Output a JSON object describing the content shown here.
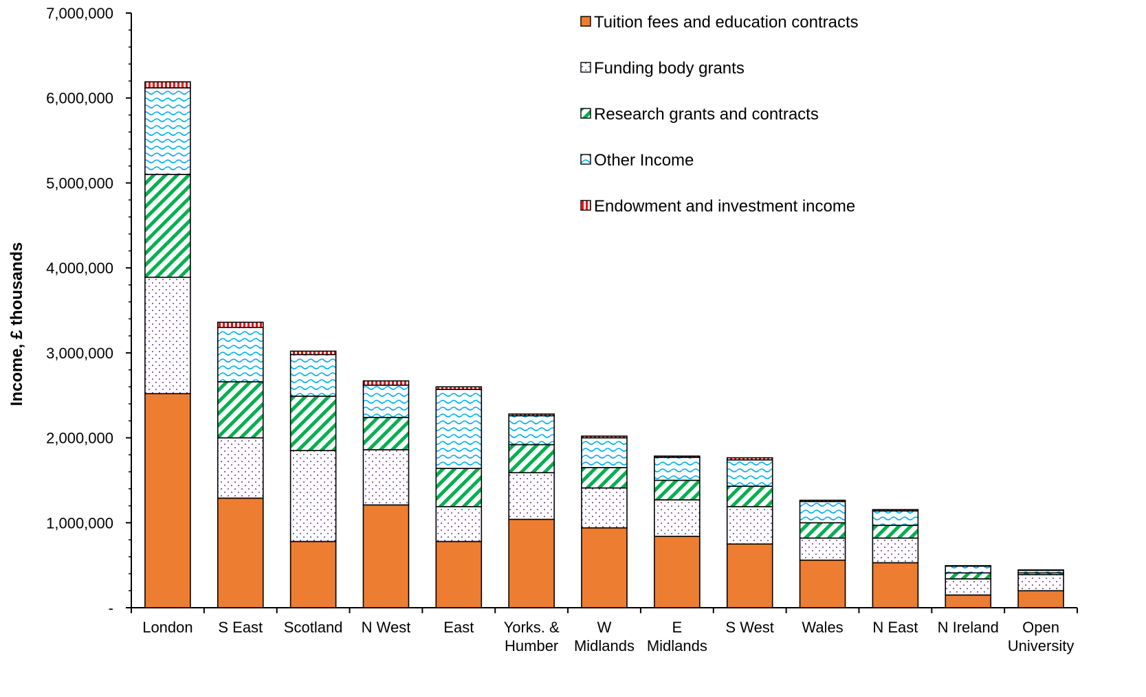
{
  "chart_data": {
    "type": "bar",
    "stacked": true,
    "title": "",
    "xlabel": "",
    "ylabel": "Income, £ thousands",
    "ylim": [
      0,
      7000000
    ],
    "yticks": [
      0,
      1000000,
      2000000,
      3000000,
      4000000,
      5000000,
      6000000,
      7000000
    ],
    "ytick_labels": [
      "-",
      "1,000,000",
      "2,000,000",
      "3,000,000",
      "4,000,000",
      "5,000,000",
      "6,000,000",
      "7,000,000"
    ],
    "grid": false,
    "legend_position": "top-right",
    "categories": [
      [
        "London"
      ],
      [
        "S East"
      ],
      [
        "Scotland"
      ],
      [
        "N West"
      ],
      [
        "East"
      ],
      [
        "Yorks. &",
        "Humber"
      ],
      [
        "W",
        "Midlands"
      ],
      [
        "E",
        "Midlands"
      ],
      [
        "S West"
      ],
      [
        "Wales"
      ],
      [
        "N East"
      ],
      [
        "N Ireland"
      ],
      [
        "Open",
        "University"
      ]
    ],
    "series": [
      {
        "name": "Tuition fees and education contracts",
        "color": "#ED7D31",
        "pattern": "solid",
        "values": [
          2520000,
          1290000,
          780000,
          1210000,
          780000,
          1040000,
          940000,
          840000,
          750000,
          560000,
          530000,
          150000,
          200000
        ]
      },
      {
        "name": "Funding body grants",
        "color": "#7030A0",
        "pattern": "dots",
        "values": [
          1370000,
          710000,
          1070000,
          650000,
          410000,
          550000,
          470000,
          430000,
          440000,
          260000,
          290000,
          190000,
          190000
        ]
      },
      {
        "name": "Research grants and contracts",
        "color": "#00B050",
        "pattern": "diagonal",
        "values": [
          1210000,
          660000,
          640000,
          380000,
          450000,
          330000,
          240000,
          230000,
          240000,
          180000,
          150000,
          70000,
          20000
        ]
      },
      {
        "name": "Other Income",
        "color": "#00B0F0",
        "pattern": "waves",
        "values": [
          1020000,
          640000,
          490000,
          380000,
          930000,
          340000,
          350000,
          270000,
          310000,
          250000,
          170000,
          80000,
          30000
        ]
      },
      {
        "name": "Endowment and investment income",
        "color": "#FF0000",
        "pattern": "vertical",
        "values": [
          70000,
          60000,
          40000,
          50000,
          30000,
          20000,
          20000,
          15000,
          25000,
          15000,
          15000,
          5000,
          5000
        ]
      }
    ]
  }
}
